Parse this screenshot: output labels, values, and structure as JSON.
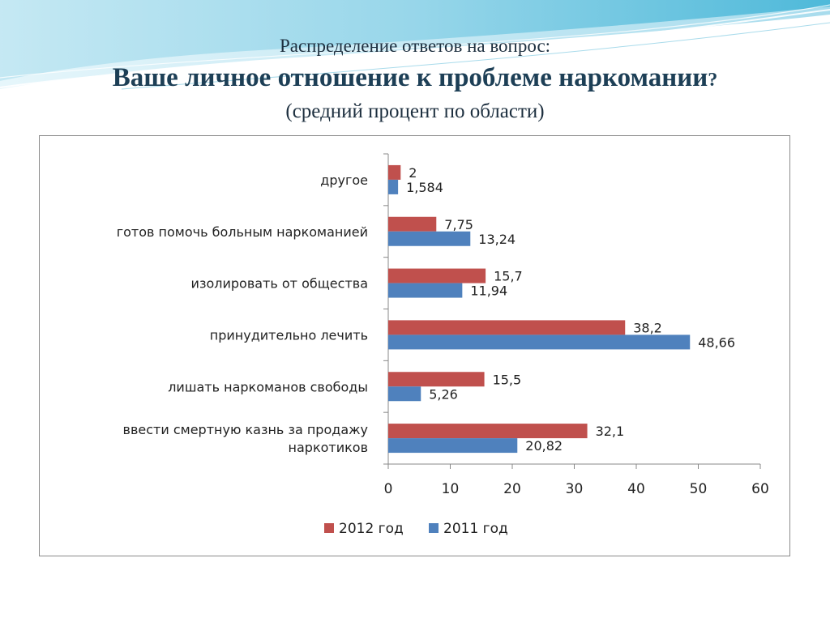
{
  "slide": {
    "line1": "Распределение ответов на вопрос:",
    "line2": "Ваше личное отношение к проблеме наркомании",
    "line2_qmark": "?",
    "line3": "(средний процент по области)"
  },
  "chart_data": {
    "type": "bar",
    "orientation": "horizontal",
    "categories": [
      "другое",
      "готов помочь больным наркоманией",
      "изолировать от общества",
      "принудительно лечить",
      "лишать наркоманов свободы",
      "ввести смертную казнь за продажу наркотиков"
    ],
    "category_lines": [
      [
        "другое"
      ],
      [
        "готов помочь больным наркоманией"
      ],
      [
        "изолировать от общества"
      ],
      [
        "принудительно лечить"
      ],
      [
        "лишать наркоманов свободы"
      ],
      [
        "ввести смертную казнь за продажу",
        "наркотиков"
      ]
    ],
    "series": [
      {
        "name": "2012 год",
        "color": "#c0504d",
        "values": [
          2,
          7.75,
          15.7,
          38.2,
          15.5,
          32.1
        ],
        "labels": [
          "2",
          "7,75",
          "15,7",
          "38,2",
          "15,5",
          "32,1"
        ]
      },
      {
        "name": "2011 год",
        "color": "#4f81bd",
        "values": [
          1.584,
          13.24,
          11.94,
          48.66,
          5.26,
          20.82
        ],
        "labels": [
          "1,584",
          "13,24",
          "11,94",
          "48,66",
          "5,26",
          "20,82"
        ]
      }
    ],
    "xlim": [
      0,
      60
    ],
    "xticks": [
      0,
      10,
      20,
      30,
      40,
      50,
      60
    ],
    "grid": false,
    "legend": "bottom"
  }
}
